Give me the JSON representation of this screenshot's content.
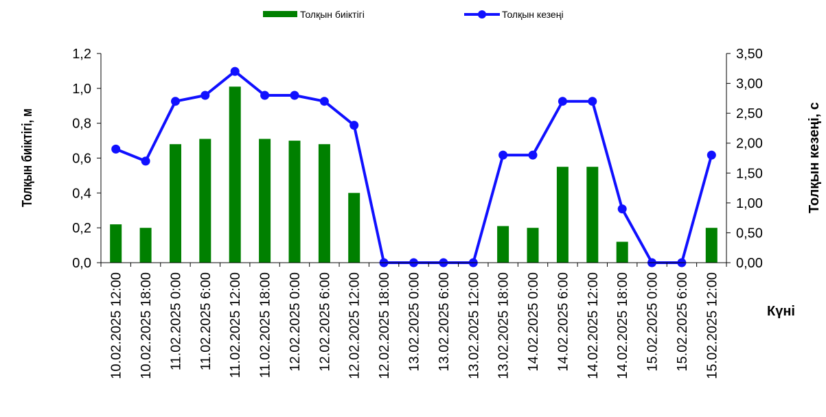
{
  "chart_data": {
    "type": "bar",
    "categories": [
      "10.02.2025 12:00",
      "10.02.2025 18:00",
      "11.02.2025 0:00",
      "11.02.2025 6:00",
      "11.02.2025 12:00",
      "11.02.2025 18:00",
      "12.02.2025 0:00",
      "12.02.2025 6:00",
      "12.02.2025 12:00",
      "12.02.2025 18:00",
      "13.02.2025 0:00",
      "13.02.2025 6:00",
      "13.02.2025 12:00",
      "13.02.2025 18:00",
      "14.02.2025 0:00",
      "14.02.2025 6:00",
      "14.02.2025 12:00",
      "14.02.2025 18:00",
      "15.02.2025 0:00",
      "15.02.2025 6:00",
      "15.02.2025 12:00"
    ],
    "series": [
      {
        "name": "Толқын биіктігі",
        "type": "bar",
        "axis": "left",
        "color": "#008000",
        "values": [
          0.22,
          0.2,
          0.68,
          0.71,
          1.01,
          0.71,
          0.7,
          0.68,
          0.4,
          0,
          0,
          0,
          0,
          0.21,
          0.2,
          0.55,
          0.55,
          0.12,
          0,
          0,
          0.2
        ]
      },
      {
        "name": "Толқын кезеңі",
        "type": "line",
        "axis": "right",
        "color": "#1010ff",
        "values": [
          1.9,
          1.7,
          2.7,
          2.8,
          3.2,
          2.8,
          2.8,
          2.7,
          2.3,
          0,
          0,
          0,
          0,
          1.8,
          1.8,
          2.7,
          2.7,
          0.9,
          0,
          0,
          1.8
        ]
      }
    ],
    "y_left": {
      "label": "Толқын биіктігі, м",
      "ylim": [
        0,
        1.2
      ],
      "ticks": [
        "0,0",
        "0,2",
        "0,4",
        "0,6",
        "0,8",
        "1,0",
        "1,2"
      ]
    },
    "y_right": {
      "label": "Толқын кезеңі, с",
      "ylim": [
        0,
        3.5
      ],
      "ticks": [
        "0,00",
        "0,50",
        "1,00",
        "1,50",
        "2,00",
        "2,50",
        "3,00",
        "3,50"
      ]
    },
    "xlabel": "Күні",
    "legend_position": "top-center",
    "grid": false
  }
}
